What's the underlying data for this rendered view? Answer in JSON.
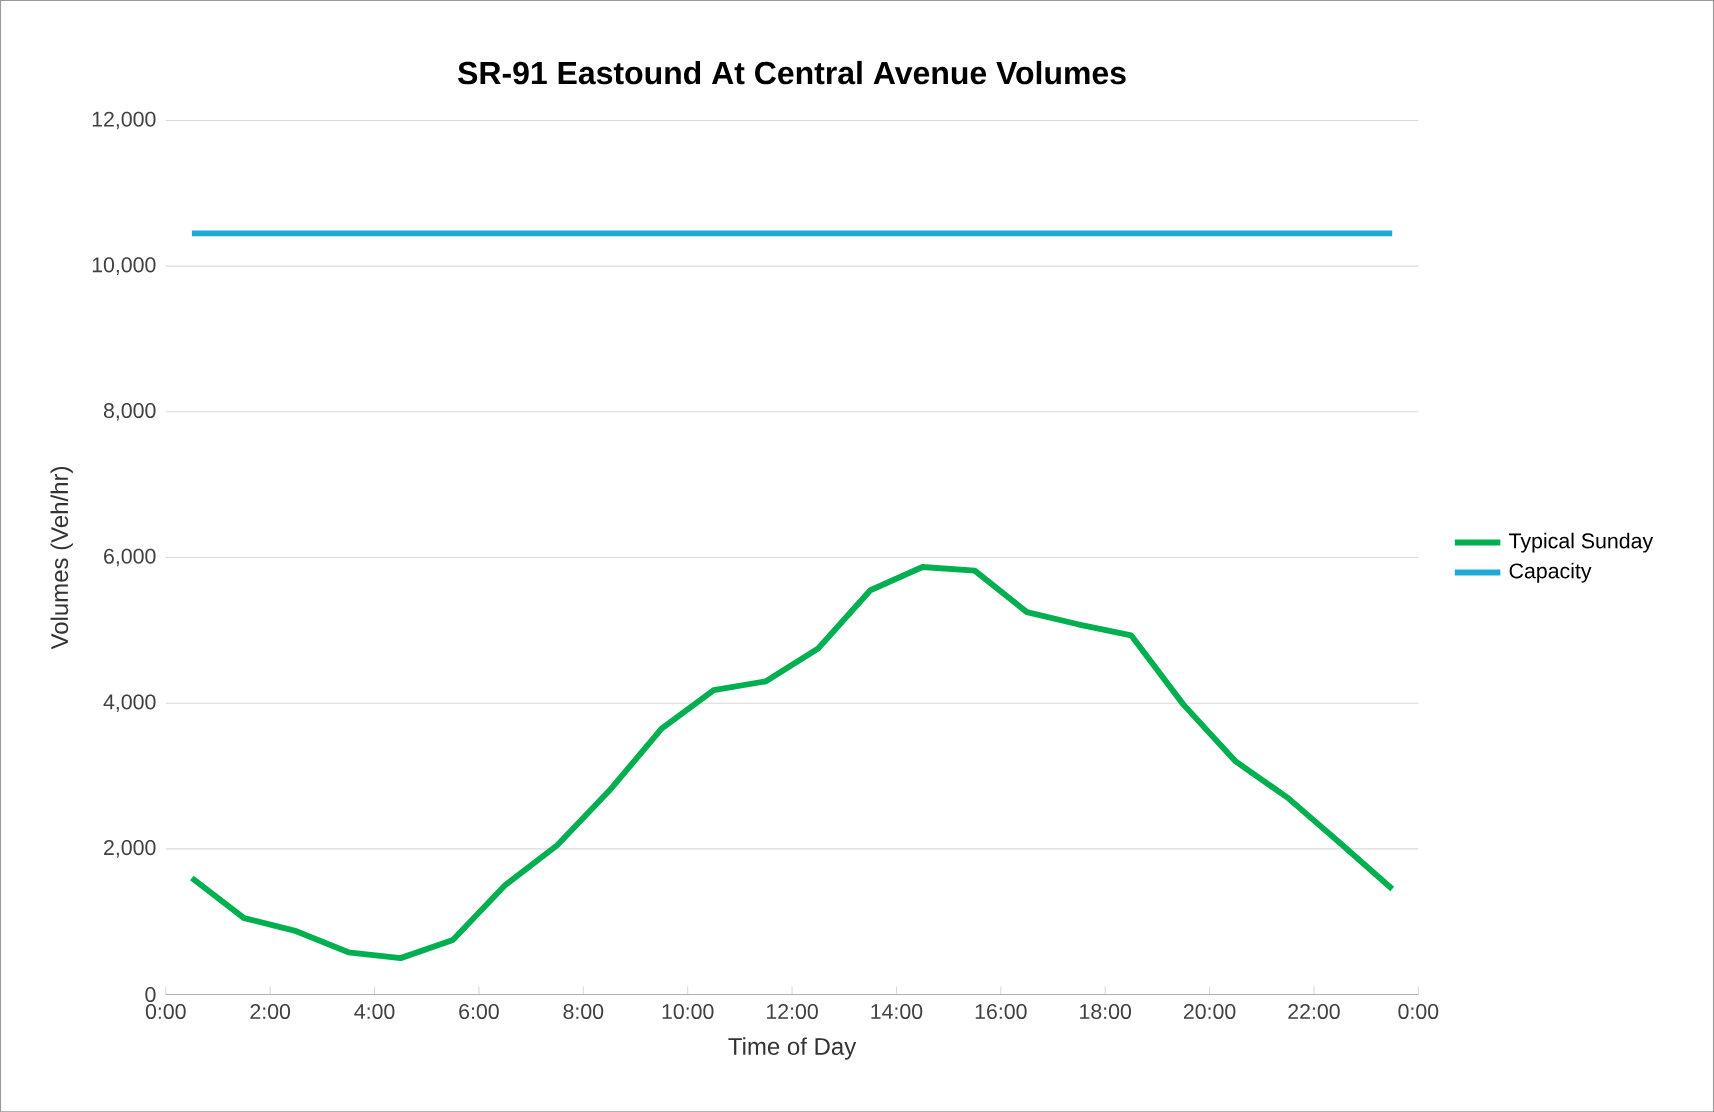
{
  "chart_data": {
    "type": "line",
    "title": "SR-91 Eastound At Central Avenue Volumes",
    "xlabel": "Time of Day",
    "ylabel": "Volumes (Veh/hr)",
    "x": [
      0.5,
      1.5,
      2.5,
      3.5,
      4.5,
      5.5,
      6.5,
      7.5,
      8.5,
      9.5,
      10.5,
      11.5,
      12.5,
      13.5,
      14.5,
      15.5,
      16.5,
      17.5,
      18.5,
      19.5,
      20.5,
      21.5,
      22.5,
      23.5
    ],
    "series": [
      {
        "name": "Typical Sunday",
        "color": "#00b050",
        "values": [
          1600,
          1050,
          870,
          580,
          500,
          750,
          1500,
          2050,
          2800,
          3650,
          4180,
          4300,
          4750,
          5550,
          5870,
          5820,
          5250,
          5080,
          4930,
          3980,
          3200,
          2700,
          2080,
          1450
        ]
      },
      {
        "name": "Capacity",
        "color": "#1fa9d6",
        "values": [
          10450,
          10450,
          10450,
          10450,
          10450,
          10450,
          10450,
          10450,
          10450,
          10450,
          10450,
          10450,
          10450,
          10450,
          10450,
          10450,
          10450,
          10450,
          10450,
          10450,
          10450,
          10450,
          10450,
          10450
        ]
      }
    ],
    "xlim": [
      0,
      24
    ],
    "xticks": [
      {
        "value": 0,
        "label": "0:00"
      },
      {
        "value": 2,
        "label": "2:00"
      },
      {
        "value": 4,
        "label": "4:00"
      },
      {
        "value": 6,
        "label": "6:00"
      },
      {
        "value": 8,
        "label": "8:00"
      },
      {
        "value": 10,
        "label": "10:00"
      },
      {
        "value": 12,
        "label": "12:00"
      },
      {
        "value": 14,
        "label": "14:00"
      },
      {
        "value": 16,
        "label": "16:00"
      },
      {
        "value": 18,
        "label": "18:00"
      },
      {
        "value": 20,
        "label": "20:00"
      },
      {
        "value": 22,
        "label": "22:00"
      },
      {
        "value": 24,
        "label": "0:00"
      }
    ],
    "ylim": [
      0,
      12000
    ],
    "yticks": [
      {
        "value": 0,
        "label": "0"
      },
      {
        "value": 2000,
        "label": "2,000"
      },
      {
        "value": 4000,
        "label": "4,000"
      },
      {
        "value": 6000,
        "label": "6,000"
      },
      {
        "value": 8000,
        "label": "8,000"
      },
      {
        "value": 10000,
        "label": "10,000"
      },
      {
        "value": 12000,
        "label": "12,000"
      }
    ],
    "grid": "y",
    "legend": "right",
    "marker": "none",
    "line_style": "solid"
  }
}
